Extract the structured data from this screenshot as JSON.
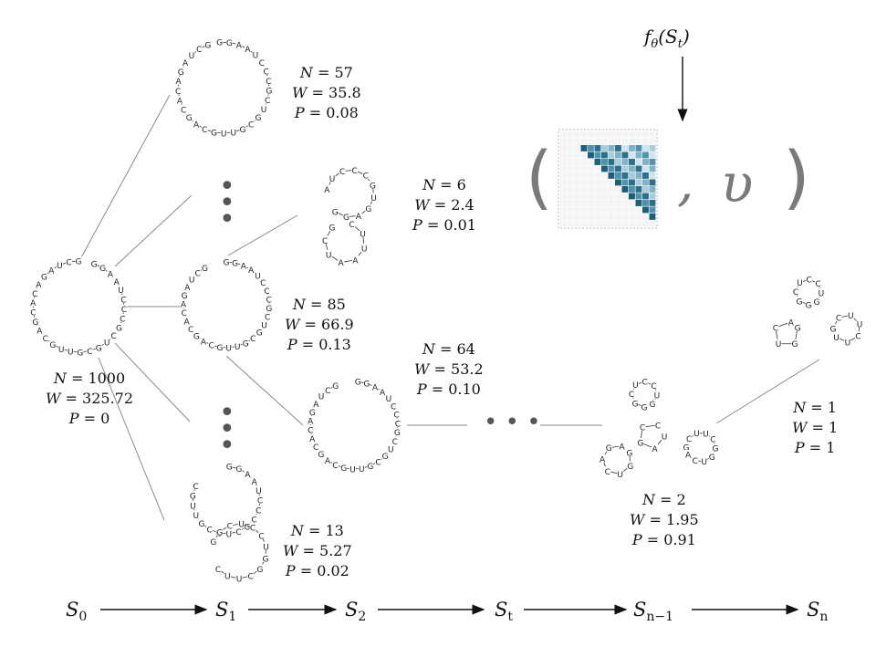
{
  "nodes": [
    {
      "id": "root",
      "N": "1000",
      "W": "325.72",
      "P": "0"
    },
    {
      "id": "c1",
      "N": "57",
      "W": "35.8",
      "P": "0.08"
    },
    {
      "id": "c2",
      "N": "85",
      "W": "66.9",
      "P": "0.13"
    },
    {
      "id": "c3",
      "N": "13",
      "W": "5.27",
      "P": "0.02"
    },
    {
      "id": "g1",
      "N": "6",
      "W": "2.4",
      "P": "0.01"
    },
    {
      "id": "g2",
      "N": "64",
      "W": "53.2",
      "P": "0.10"
    },
    {
      "id": "n_1",
      "N": "2",
      "W": "1.95",
      "P": "0.91"
    },
    {
      "id": "n",
      "N": "1",
      "W": "1",
      "P": "1"
    }
  ],
  "stat_symbols": {
    "n": "N",
    "w": "W",
    "p": "P",
    "eq": " = "
  },
  "states": [
    {
      "base": "S",
      "sub": "0"
    },
    {
      "base": "S",
      "sub": "1"
    },
    {
      "base": "S",
      "sub": "2"
    },
    {
      "base": "S",
      "sub": "t"
    },
    {
      "base": "S",
      "sub": "n−1"
    },
    {
      "base": "S",
      "sub": "n"
    }
  ],
  "network": {
    "func": "f",
    "theta": "θ",
    "arg": "(S",
    "arg_sub": "t",
    "arg_close": ")",
    "value_symbol": "υ",
    "open_paren": "(",
    "close_paren": ")",
    "comma": ","
  },
  "ellipsis": "• • •",
  "sequences": {
    "main": "GGAAUCCCGCUGCGUUGCAGCACAGAUCG",
    "g1_top": "AUCCCGUGAGG",
    "g1_bot": "CUUAAUCG",
    "hair_a": "GGCUCCUG",
    "hair_b": "GCUUC",
    "hair_c": "GGUCA"
  },
  "colors": {
    "heat_dark": "#1d5f7a",
    "heat_light": "#c9e2ea",
    "grid": "#e6e6e6",
    "line": "#8a8a8a"
  }
}
